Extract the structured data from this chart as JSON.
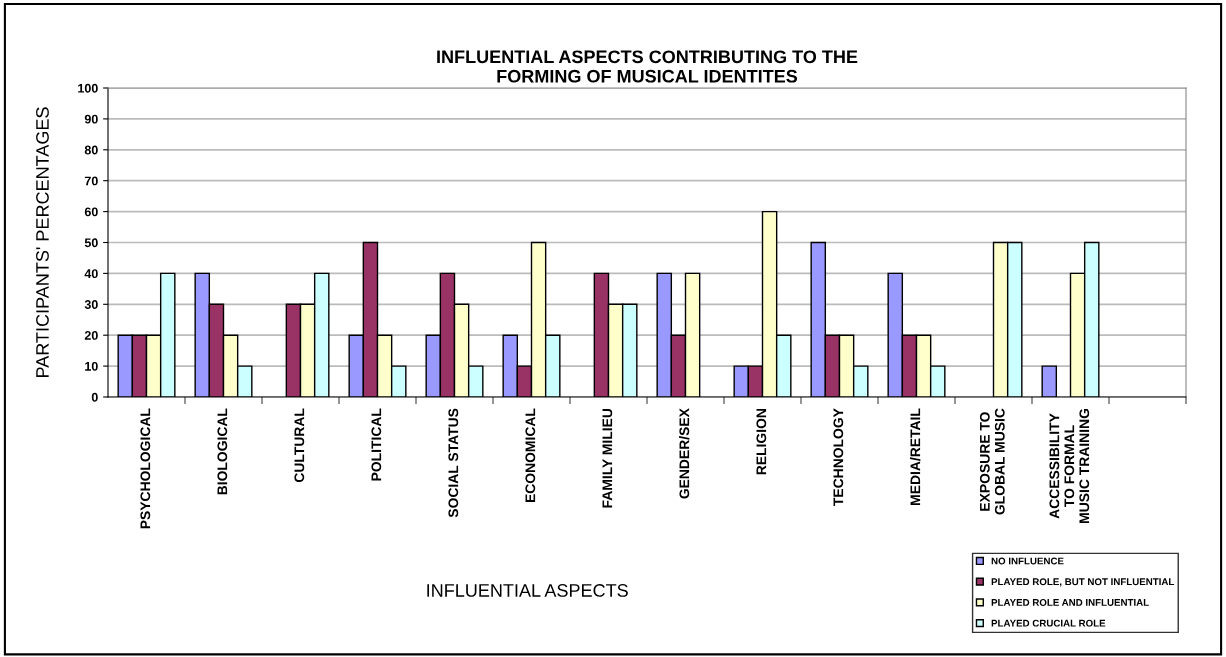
{
  "chart_data": {
    "type": "bar",
    "title": "INFLUENTIAL ASPECTS CONTRIBUTING TO THE\nFORMING OF MUSICAL IDENTITES",
    "xlabel": "INFLUENTIAL ASPECTS",
    "ylabel": "PARTICIPANTS' PERCENTAGES",
    "categories": [
      "PSYCHOLOGICAL",
      "BIOLOGICAL",
      "CULTURAL",
      "POLITICAL",
      "SOCIAL STATUS",
      "ECONOMICAL",
      "FAMILY MILIEU",
      "GENDER/SEX",
      "RELIGION",
      "TECHNOLOGY",
      "MEDIA/RETAIL",
      "EXPOSURE TO\nGLOBAL MUSIC",
      "ACCESSIBILITY\nTO FORMAL\nMUSIC TRAINING",
      null
    ],
    "series": [
      {
        "name": "NO INFLUENCE",
        "color": "#9999ff",
        "values": [
          20,
          40,
          0,
          20,
          20,
          20,
          0,
          40,
          10,
          50,
          40,
          0,
          10,
          null
        ]
      },
      {
        "name": "PLAYED ROLE, BUT NOT INFLUENTIAL",
        "color": "#993366",
        "values": [
          20,
          30,
          30,
          50,
          40,
          10,
          40,
          20,
          10,
          20,
          20,
          0,
          0,
          null
        ]
      },
      {
        "name": "PLAYED ROLE AND INFLUENTIAL",
        "color": "#ffffcc",
        "values": [
          20,
          20,
          30,
          20,
          30,
          50,
          30,
          40,
          60,
          20,
          20,
          50,
          40,
          null
        ]
      },
      {
        "name": "PLAYED CRUCIAL ROLE",
        "color": "#ccffff",
        "values": [
          40,
          10,
          40,
          10,
          10,
          20,
          30,
          0,
          20,
          10,
          10,
          50,
          50,
          null
        ]
      }
    ],
    "ylim": [
      0,
      100
    ],
    "yticks": [
      0,
      10,
      20,
      30,
      40,
      50,
      60,
      70,
      80,
      90,
      100
    ],
    "grid": "y",
    "legend": "bottom right"
  }
}
